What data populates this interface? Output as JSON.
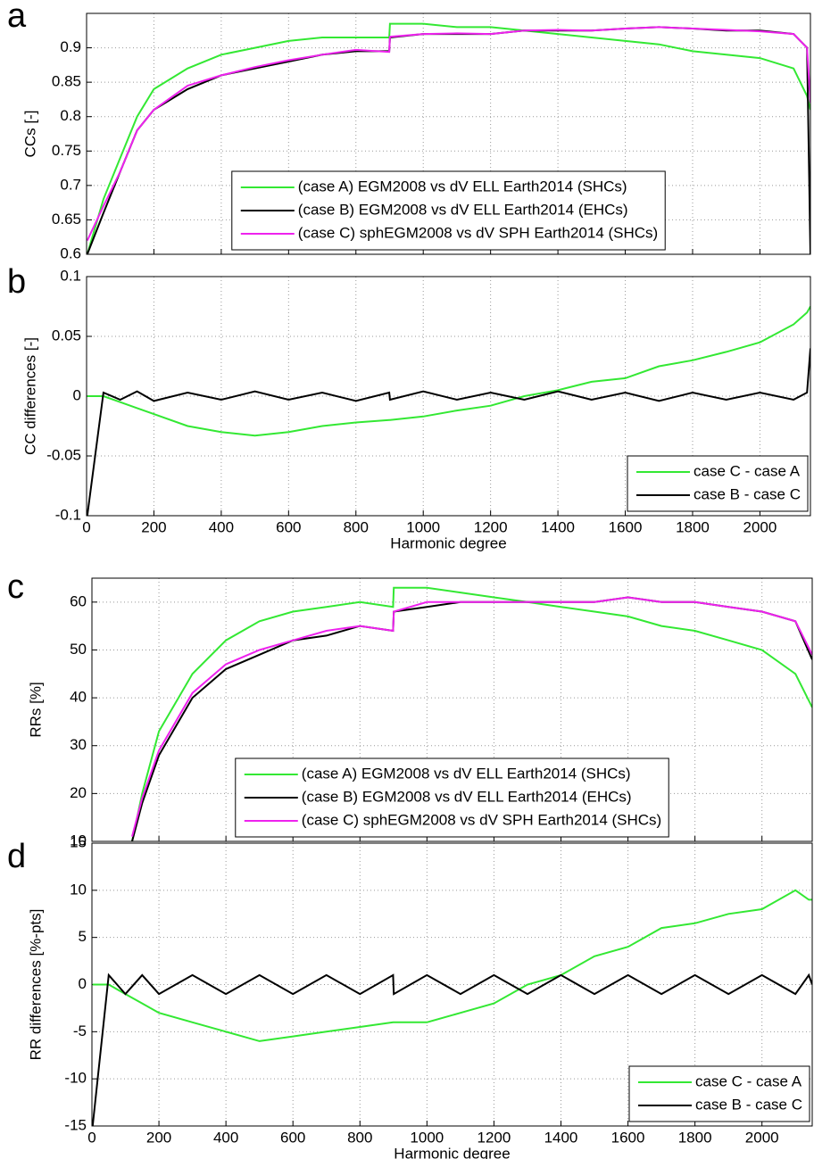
{
  "chart_data": [
    {
      "type": "line",
      "panel_label": "a",
      "ylabel": "CCs [-]",
      "x": [
        2,
        50,
        100,
        150,
        200,
        300,
        400,
        500,
        600,
        700,
        800,
        899,
        901,
        1000,
        1100,
        1200,
        1300,
        1400,
        1500,
        1600,
        1700,
        1800,
        1900,
        2000,
        2100,
        2140,
        2150
      ],
      "series": [
        {
          "name": "(case A) EGM2008 vs dV ELL Earth2014 (SHCs)",
          "color": "#33e833",
          "values": [
            0.6,
            0.68,
            0.74,
            0.8,
            0.84,
            0.87,
            0.89,
            0.9,
            0.91,
            0.915,
            0.915,
            0.915,
            0.935,
            0.935,
            0.93,
            0.93,
            0.925,
            0.92,
            0.915,
            0.91,
            0.905,
            0.895,
            0.89,
            0.885,
            0.87,
            0.83,
            0.81
          ]
        },
        {
          "name": "(case B) EGM2008 vs dV ELL Earth2014 (EHCs)",
          "color": "#000000",
          "values": [
            0.6,
            0.66,
            0.72,
            0.78,
            0.81,
            0.84,
            0.86,
            0.87,
            0.88,
            0.89,
            0.895,
            0.895,
            0.915,
            0.92,
            0.92,
            0.92,
            0.925,
            0.925,
            0.925,
            0.928,
            0.93,
            0.928,
            0.925,
            0.925,
            0.92,
            0.9,
            0.6
          ]
        },
        {
          "name": "(case C) sphEGM2008 vs dV SPH Earth2014 (SHCs)",
          "color": "#ee22ee",
          "values": [
            0.62,
            0.67,
            0.72,
            0.78,
            0.81,
            0.845,
            0.86,
            0.872,
            0.882,
            0.89,
            0.897,
            0.894,
            0.916,
            0.92,
            0.921,
            0.92,
            0.925,
            0.926,
            0.925,
            0.928,
            0.93,
            0.928,
            0.926,
            0.924,
            0.92,
            0.9,
            0.82
          ]
        }
      ],
      "xlim": [
        0,
        2150
      ],
      "ylim": [
        0.6,
        0.95
      ],
      "xticks": [
        0,
        200,
        400,
        600,
        800,
        1000,
        1200,
        1400,
        1600,
        1800,
        2000
      ],
      "xtick_labels": false,
      "yticks": [
        0.6,
        0.65,
        0.7,
        0.75,
        0.8,
        0.85,
        0.9
      ],
      "grid": true,
      "legend": "lower center"
    },
    {
      "type": "line",
      "panel_label": "b",
      "ylabel": "CC differences [-]",
      "xlabel": "Harmonic degree",
      "x": [
        2,
        50,
        100,
        150,
        200,
        300,
        400,
        500,
        600,
        700,
        800,
        899,
        901,
        1000,
        1100,
        1200,
        1300,
        1400,
        1500,
        1600,
        1700,
        1800,
        1900,
        2000,
        2100,
        2140,
        2150
      ],
      "series": [
        {
          "name": "case C - case A",
          "color": "#33e833",
          "values": [
            0,
            0,
            -0.005,
            -0.01,
            -0.015,
            -0.025,
            -0.03,
            -0.033,
            -0.03,
            -0.025,
            -0.022,
            -0.02,
            -0.02,
            -0.017,
            -0.012,
            -0.008,
            0,
            0.005,
            0.012,
            0.015,
            0.025,
            0.03,
            0.037,
            0.045,
            0.06,
            0.07,
            0.075
          ]
        },
        {
          "name": "case B - case C",
          "color": "#000000",
          "values": [
            -0.1,
            0.003,
            -0.003,
            0.004,
            -0.004,
            0.003,
            -0.003,
            0.004,
            -0.003,
            0.003,
            -0.004,
            0.003,
            -0.003,
            0.004,
            -0.003,
            0.003,
            -0.003,
            0.004,
            -0.003,
            0.003,
            -0.004,
            0.003,
            -0.003,
            0.003,
            -0.003,
            0.003,
            0.04
          ]
        }
      ],
      "xlim": [
        0,
        2150
      ],
      "ylim": [
        -0.1,
        0.1
      ],
      "xticks": [
        0,
        200,
        400,
        600,
        800,
        1000,
        1200,
        1400,
        1600,
        1800,
        2000
      ],
      "xtick_labels": true,
      "yticks": [
        -0.1,
        -0.05,
        0,
        0.05,
        0.1
      ],
      "grid": true,
      "legend": "lower right"
    },
    {
      "type": "line",
      "panel_label": "c",
      "ylabel": "RRs [%]",
      "x": [
        120,
        150,
        200,
        300,
        400,
        500,
        600,
        700,
        800,
        899,
        901,
        1000,
        1100,
        1200,
        1300,
        1400,
        1500,
        1600,
        1700,
        1800,
        1900,
        2000,
        2100,
        2150
      ],
      "series": [
        {
          "name": "(case A) EGM2008 vs dV ELL Earth2014 (SHCs)",
          "color": "#33e833",
          "values": [
            10,
            20,
            33,
            45,
            52,
            56,
            58,
            59,
            60,
            59,
            63,
            63,
            62,
            61,
            60,
            59,
            58,
            57,
            55,
            54,
            52,
            50,
            45,
            38
          ]
        },
        {
          "name": "(case B) EGM2008 vs dV ELL Earth2014 (EHCs)",
          "color": "#000000",
          "values": [
            10,
            18,
            28,
            40,
            46,
            49,
            52,
            53,
            55,
            54,
            58,
            59,
            60,
            60,
            60,
            60,
            60,
            61,
            60,
            60,
            59,
            58,
            56,
            48
          ]
        },
        {
          "name": "(case C) sphEGM2008 vs dV SPH Earth2014 (SHCs)",
          "color": "#ee22ee",
          "values": [
            11,
            19,
            29,
            41,
            47,
            50,
            52,
            54,
            55,
            54,
            58,
            60,
            60,
            60,
            60,
            60,
            60,
            61,
            60,
            60,
            59,
            58,
            56,
            49
          ]
        }
      ],
      "xlim": [
        0,
        2150
      ],
      "ylim": [
        10,
        65
      ],
      "xticks": [
        0,
        200,
        400,
        600,
        800,
        1000,
        1200,
        1400,
        1600,
        1800,
        2000
      ],
      "xtick_labels": false,
      "yticks": [
        10,
        20,
        30,
        40,
        50,
        60
      ],
      "grid": true,
      "legend": "lower center"
    },
    {
      "type": "line",
      "panel_label": "d",
      "ylabel": "RR differences [%-pts]",
      "xlabel": "Harmonic degree",
      "x": [
        2,
        50,
        100,
        150,
        200,
        300,
        400,
        500,
        600,
        700,
        800,
        899,
        901,
        1000,
        1100,
        1200,
        1300,
        1400,
        1500,
        1600,
        1700,
        1800,
        1900,
        2000,
        2100,
        2140,
        2150
      ],
      "series": [
        {
          "name": "case C - case A",
          "color": "#33e833",
          "values": [
            0,
            0,
            -1,
            -2,
            -3,
            -4,
            -5,
            -6,
            -5.5,
            -5,
            -4.5,
            -4,
            -4,
            -4,
            -3,
            -2,
            0,
            1,
            3,
            4,
            6,
            6.5,
            7.5,
            8,
            10,
            9,
            9
          ]
        },
        {
          "name": "case B - case C",
          "color": "#000000",
          "values": [
            -15,
            1,
            -1,
            1,
            -1,
            1,
            -1,
            1,
            -1,
            1,
            -1,
            1,
            -1,
            1,
            -1,
            1,
            -1,
            1,
            -1,
            1,
            -1,
            1,
            -1,
            1,
            -1,
            1,
            0
          ]
        }
      ],
      "xlim": [
        0,
        2150
      ],
      "ylim": [
        -15,
        15
      ],
      "xticks": [
        0,
        200,
        400,
        600,
        800,
        1000,
        1200,
        1400,
        1600,
        1800,
        2000
      ],
      "xtick_labels": true,
      "yticks": [
        -15,
        -10,
        -5,
        0,
        5,
        10,
        15
      ],
      "grid": true,
      "legend": "lower right"
    }
  ]
}
